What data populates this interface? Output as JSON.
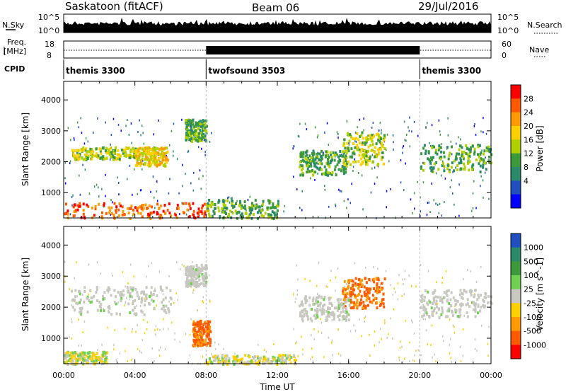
{
  "header": {
    "station": "Saskatoon (fitACF)",
    "beam": "Beam 06",
    "date": "29/Jul/2016"
  },
  "top_panels": {
    "nsky_label": "N.Sky",
    "nsearch_label": "N.Search",
    "freq_label_1": "Freq.",
    "freq_label_2": "[MHz]",
    "nave_label": "Nave",
    "cpid_label": "CPID",
    "nsky_ticks": [
      "10^5",
      "10^0"
    ],
    "nsearch_ticks": [
      "10^5",
      "10^0"
    ],
    "freq_ticks": [
      "18",
      "8"
    ],
    "nave_ticks": [
      "60",
      "0"
    ]
  },
  "cpid_segments": [
    {
      "label": "themis 3300",
      "start_h": 0,
      "end_h": 8
    },
    {
      "label": "twofsound 3503",
      "start_h": 8,
      "end_h": 20
    },
    {
      "label": "themis 3300",
      "start_h": 20,
      "end_h": 24
    }
  ],
  "power_colorbar": {
    "label": "Power [dB]",
    "ticks": [
      "28",
      "24",
      "20",
      "16",
      "12",
      "8",
      "4"
    ],
    "colors": [
      "#ff0000",
      "#ff5a00",
      "#ff9a00",
      "#ffd000",
      "#b0d000",
      "#3c9a3c",
      "#2a8a6a",
      "#2050c0",
      "#0000ff"
    ]
  },
  "velocity_colorbar": {
    "label": "Velocity [m s^-1]",
    "ticks": [
      "1000",
      "500",
      "100",
      "25",
      "-25",
      "-100",
      "-500",
      "-1000"
    ],
    "colors": [
      "#2050c0",
      "#2a8a6a",
      "#3c9a3c",
      "#70d050",
      "#c8c8c0",
      "#ffd000",
      "#ff9a00",
      "#ff5a00",
      "#ff0000"
    ]
  },
  "chart_data": [
    {
      "type": "heatmap",
      "title": "",
      "xlabel": "",
      "ylabel": "Slant Range [km]",
      "xlim": [
        0,
        24
      ],
      "ylim": [
        180,
        4600
      ],
      "x_ticks": [
        "00:00",
        "04:00",
        "08:00",
        "12:00",
        "16:00",
        "20:00",
        "00:00"
      ],
      "y_ticks": [
        1000,
        2000,
        3000,
        4000
      ],
      "series": [
        {
          "x": [
            0.4,
            4.2
          ],
          "y": [
            2100,
            2500
          ],
          "value": 12
        },
        {
          "x": [
            4.0,
            5.8
          ],
          "y": [
            1900,
            2500
          ],
          "value": 16
        },
        {
          "x": [
            6.8,
            8.0
          ],
          "y": [
            2700,
            3400
          ],
          "value": 8
        },
        {
          "x": [
            0.0,
            8.0
          ],
          "y": [
            200,
            700
          ],
          "value": 24
        },
        {
          "x": [
            8.0,
            12.0
          ],
          "y": [
            200,
            800
          ],
          "value": 8
        },
        {
          "x": [
            13.2,
            15.8
          ],
          "y": [
            1600,
            2400
          ],
          "value": 8
        },
        {
          "x": [
            15.6,
            18.0
          ],
          "y": [
            1900,
            3000
          ],
          "value": 12
        },
        {
          "x": [
            20.0,
            24.0
          ],
          "y": [
            1700,
            2600
          ],
          "value": 8
        }
      ]
    },
    {
      "type": "heatmap",
      "title": "",
      "xlabel": "Time UT",
      "ylabel": "Slant Range [km]",
      "xlim": [
        0,
        24
      ],
      "ylim": [
        180,
        4600
      ],
      "x_ticks": [
        "00:00",
        "04:00",
        "08:00",
        "12:00",
        "16:00",
        "20:00",
        "00:00"
      ],
      "y_ticks": [
        1000,
        2000,
        3000,
        4000
      ],
      "series": [
        {
          "x": [
            0.4,
            6.0
          ],
          "y": [
            1800,
            2700
          ],
          "value": 0
        },
        {
          "x": [
            6.8,
            8.0
          ],
          "y": [
            2700,
            3400
          ],
          "value": 0
        },
        {
          "x": [
            7.2,
            8.2
          ],
          "y": [
            800,
            1600
          ],
          "value": -300
        },
        {
          "x": [
            0.0,
            2.4
          ],
          "y": [
            200,
            600
          ],
          "value": -50
        },
        {
          "x": [
            8.0,
            13.0
          ],
          "y": [
            200,
            500
          ],
          "value": -50
        },
        {
          "x": [
            15.6,
            18.0
          ],
          "y": [
            2000,
            3000
          ],
          "value": -300
        },
        {
          "x": [
            13.2,
            16.0
          ],
          "y": [
            1600,
            2400
          ],
          "value": 0
        },
        {
          "x": [
            20.0,
            24.0
          ],
          "y": [
            1700,
            2600
          ],
          "value": 0
        }
      ]
    }
  ]
}
